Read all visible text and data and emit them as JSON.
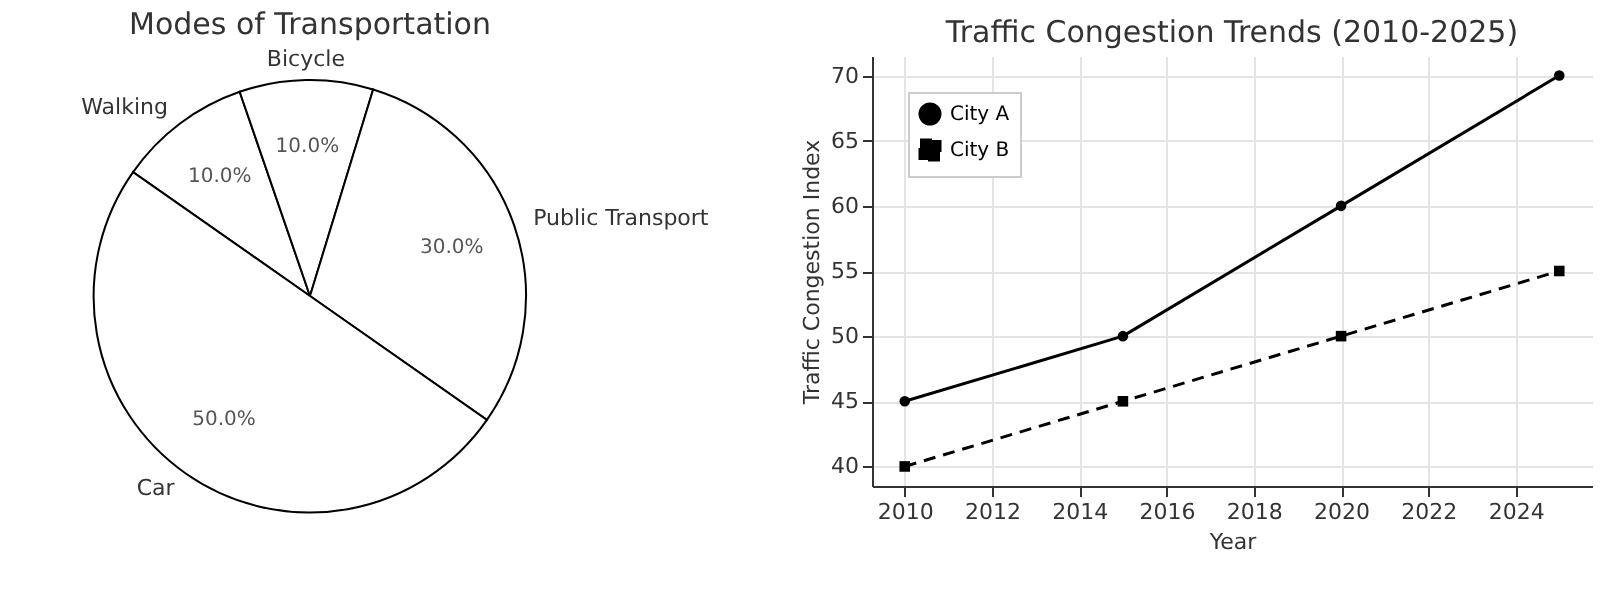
{
  "chart_data": [
    {
      "type": "pie",
      "title": "Modes of Transportation",
      "categories": [
        "Walking",
        "Bicycle",
        "Public Transport",
        "Car"
      ],
      "values": [
        10,
        10,
        30,
        50
      ],
      "colors": [
        "#ffffff",
        "#ffffff",
        "#ffffff",
        "#ffffff"
      ],
      "value_labels": [
        "10.0%",
        "10.0%",
        "30.0%",
        "50.0%"
      ]
    },
    {
      "type": "line",
      "title": "Traffic Congestion Trends (2010-2025)",
      "xlabel": "Year",
      "ylabel": "Traffic Congestion Index",
      "x": [
        2010,
        2015,
        2020,
        2025
      ],
      "series": [
        {
          "name": "City A",
          "color": "#000000",
          "values": [
            45,
            50,
            60,
            70
          ],
          "marker": "circle",
          "line_style": "solid"
        },
        {
          "name": "City B",
          "color": "#000000",
          "values": [
            40,
            45,
            50,
            55
          ],
          "marker": "square",
          "line_style": "dashed"
        }
      ],
      "xlim": [
        2009.25,
        2025.75
      ],
      "xticks": [
        2010,
        2012,
        2014,
        2016,
        2018,
        2020,
        2022,
        2024
      ],
      "ylim": [
        38.5,
        71.5
      ],
      "yticks": [
        40,
        45,
        50,
        55,
        60,
        65,
        70
      ],
      "grid": true,
      "legend": "top left"
    }
  ]
}
